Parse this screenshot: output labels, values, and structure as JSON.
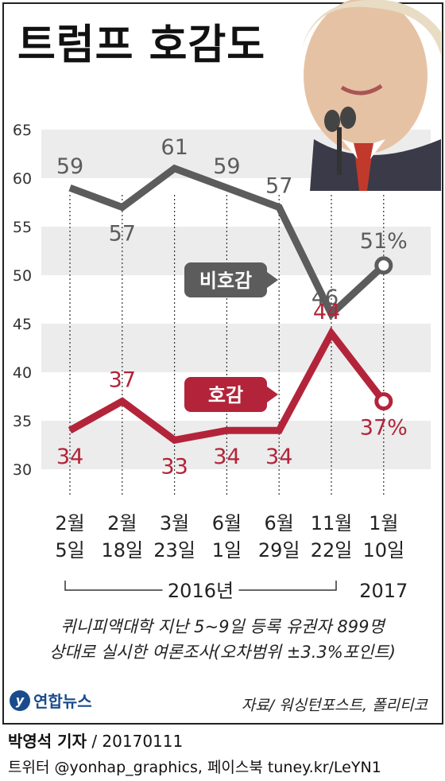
{
  "title": "트럼프 호감도",
  "chart_data": {
    "type": "line",
    "categories": [
      [
        "2월",
        "5일"
      ],
      [
        "2월",
        "18일"
      ],
      [
        "3월",
        "23일"
      ],
      [
        "6월",
        "1일"
      ],
      [
        "6월",
        "29일"
      ],
      [
        "11월",
        "22일"
      ],
      [
        "1월",
        "10일"
      ]
    ],
    "y_ticks": [
      "65",
      "60",
      "55",
      "50",
      "45",
      "40",
      "35",
      "30"
    ],
    "ylim": [
      30,
      65
    ],
    "series": [
      {
        "name": "비호감",
        "values": [
          59,
          57,
          61,
          59,
          57,
          46,
          51
        ],
        "labels": [
          "59",
          "57",
          "61",
          "59",
          "57",
          "46",
          "51%"
        ],
        "color": "#5c5c5c"
      },
      {
        "name": "호감",
        "values": [
          34,
          37,
          33,
          34,
          34,
          44,
          37
        ],
        "labels": [
          "34",
          "37",
          "33",
          "34",
          "34",
          "44",
          "37%"
        ],
        "color": "#b3243a"
      }
    ],
    "year_groups": [
      {
        "label": "2016년",
        "from": 0,
        "to": 5
      },
      {
        "label": "2017",
        "from": 6,
        "to": 6
      }
    ],
    "band_color": "#ececec"
  },
  "note_line1": "퀴니피액대학 지난 5~9일 등록 유권자 899명",
  "note_line2": "상대로 실시한 여론조사(오차범위 ±3.3%포인트)",
  "logo_text": "연합뉴스",
  "credit": "자료/ 워싱턴포스트, 폴리티코",
  "byline_name": "박영석 기자",
  "byline_date": "/ 20170111",
  "social": "트위터 @yonhap_graphics, 페이스북 tuney.kr/LeYN1"
}
